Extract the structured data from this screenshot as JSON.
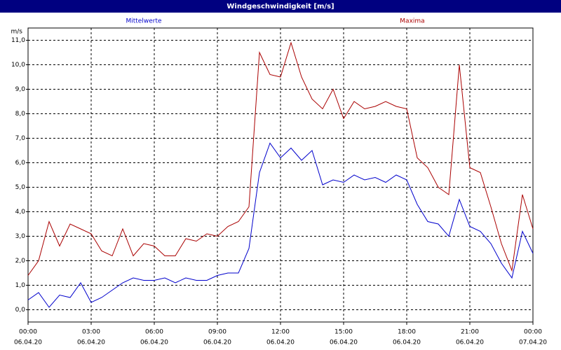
{
  "chart_data": {
    "type": "line",
    "title": "Windgeschwindigkeit [m/s]",
    "y_unit": "m/s",
    "x": [
      0,
      0.5,
      1,
      1.5,
      2,
      2.5,
      3,
      3.5,
      4,
      4.5,
      5,
      5.5,
      6,
      6.5,
      7,
      7.5,
      8,
      8.5,
      9,
      9.5,
      10,
      10.5,
      11,
      11.5,
      12,
      12.5,
      13,
      13.5,
      14,
      14.5,
      15,
      15.5,
      16,
      16.5,
      17,
      17.5,
      18,
      18.5,
      19,
      19.5,
      20,
      20.5,
      21,
      21.5,
      22,
      22.5,
      23,
      23.5,
      24
    ],
    "series": [
      {
        "name": "Mittelwerte",
        "color": "#0000cc",
        "values": [
          0.4,
          0.7,
          0.1,
          0.6,
          0.5,
          1.1,
          0.3,
          0.5,
          0.8,
          1.1,
          1.3,
          1.2,
          1.2,
          1.3,
          1.1,
          1.3,
          1.2,
          1.2,
          1.4,
          1.5,
          1.5,
          2.5,
          5.6,
          6.8,
          6.2,
          6.6,
          6.1,
          6.5,
          5.1,
          5.3,
          5.2,
          5.5,
          5.3,
          5.4,
          5.2,
          5.5,
          5.3,
          4.3,
          3.6,
          3.5,
          3.0,
          4.5,
          3.4,
          3.2,
          2.7,
          1.9,
          1.3,
          3.2,
          2.3
        ]
      },
      {
        "name": "Maxima",
        "color": "#aa0000",
        "values": [
          1.4,
          2.0,
          3.6,
          2.6,
          3.5,
          3.3,
          3.1,
          2.4,
          2.2,
          3.3,
          2.2,
          2.7,
          2.6,
          2.2,
          2.2,
          2.9,
          2.8,
          3.1,
          3.0,
          3.4,
          3.6,
          4.2,
          10.5,
          9.6,
          9.5,
          10.9,
          9.5,
          8.6,
          8.2,
          9.0,
          7.8,
          8.5,
          8.2,
          8.3,
          8.5,
          8.3,
          8.2,
          6.2,
          5.8,
          5.0,
          4.7,
          10.0,
          5.8,
          5.6,
          4.2,
          2.7,
          1.6,
          4.7,
          3.3
        ]
      }
    ],
    "xlim": [
      0,
      24
    ],
    "xticks": [
      {
        "value": 0,
        "label": "00:00",
        "date": "06.04.20"
      },
      {
        "value": 3,
        "label": "03:00",
        "date": "06.04.20"
      },
      {
        "value": 6,
        "label": "06:00",
        "date": "06.04.20"
      },
      {
        "value": 9,
        "label": "09:00",
        "date": "06.04.20"
      },
      {
        "value": 12,
        "label": "12:00",
        "date": "06.04.20"
      },
      {
        "value": 15,
        "label": "15:00",
        "date": "06.04.20"
      },
      {
        "value": 18,
        "label": "18:00",
        "date": "06.04.20"
      },
      {
        "value": 21,
        "label": "21:00",
        "date": "06.04.20"
      },
      {
        "value": 24,
        "label": "00:00",
        "date": "07.04.20"
      }
    ],
    "ylim": [
      -0.5,
      11.5
    ],
    "yticks": [
      {
        "value": 0,
        "label": "0,0"
      },
      {
        "value": 1,
        "label": "1,0"
      },
      {
        "value": 2,
        "label": "2,0"
      },
      {
        "value": 3,
        "label": "3,0"
      },
      {
        "value": 4,
        "label": "4,0"
      },
      {
        "value": 5,
        "label": "5,0"
      },
      {
        "value": 6,
        "label": "6,0"
      },
      {
        "value": 7,
        "label": "7,0"
      },
      {
        "value": 8,
        "label": "8,0"
      },
      {
        "value": 9,
        "label": "9,0"
      },
      {
        "value": 10,
        "label": "10,0"
      },
      {
        "value": 11,
        "label": "11,0"
      }
    ],
    "grid": true
  }
}
